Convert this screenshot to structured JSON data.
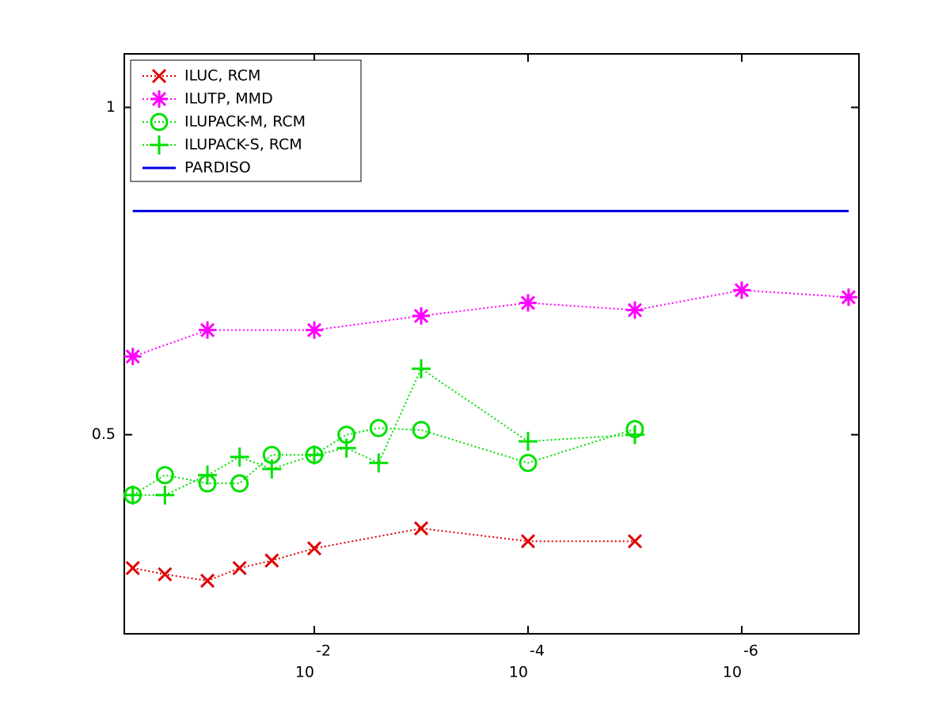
{
  "chart_data": {
    "type": "line",
    "xscale": "log",
    "yscale": "log",
    "xdir": "reverse",
    "xlim": [
      0.6,
      8e-08
    ],
    "ylim": [
      0.328,
      1.12
    ],
    "xticks": [
      {
        "value": 0.01,
        "label": "10",
        "exponent": "-2"
      },
      {
        "value": 0.0001,
        "label": "10",
        "exponent": "-4"
      },
      {
        "value": 1e-06,
        "label": "10",
        "exponent": "-6"
      }
    ],
    "yticks": [
      0.5,
      1
    ],
    "legend": "upper left",
    "series": [
      {
        "name": "ILUC, RCM",
        "color": "#e00000",
        "marker": "x",
        "linestyle": "dotted",
        "x": [
          0.5,
          0.25,
          0.1,
          0.05,
          0.025,
          0.01,
          0.001,
          0.0001,
          1e-05
        ],
        "values": [
          0.377,
          0.372,
          0.367,
          0.377,
          0.383,
          0.393,
          0.41,
          0.399,
          0.399
        ]
      },
      {
        "name": "ILUTP, MMD",
        "color": "#ff00ff",
        "marker": "*",
        "linestyle": "dotted",
        "x": [
          0.5,
          0.1,
          0.01,
          0.001,
          0.0001,
          1e-05,
          1e-06,
          1e-07
        ],
        "values": [
          0.59,
          0.624,
          0.624,
          0.643,
          0.661,
          0.651,
          0.679,
          0.669
        ]
      },
      {
        "name": "ILUPACK-M, RCM",
        "color": "#00e000",
        "marker": "o",
        "linestyle": "dotted",
        "x": [
          0.5,
          0.25,
          0.1,
          0.05,
          0.025,
          0.01,
          0.005,
          0.0025,
          0.001,
          0.0001,
          1e-05
        ],
        "values": [
          0.44,
          0.459,
          0.451,
          0.451,
          0.479,
          0.479,
          0.5,
          0.507,
          0.505,
          0.471,
          0.506
        ]
      },
      {
        "name": "ILUPACK-S, RCM",
        "color": "#00e000",
        "marker": "+",
        "linestyle": "dotted",
        "x": [
          0.5,
          0.25,
          0.1,
          0.05,
          0.025,
          0.01,
          0.005,
          0.0025,
          0.001,
          0.0001,
          1e-05
        ],
        "values": [
          0.44,
          0.44,
          0.459,
          0.477,
          0.465,
          0.479,
          0.486,
          0.471,
          0.575,
          0.493,
          0.5
        ]
      },
      {
        "name": "PARDISO",
        "color": "#0000e0",
        "marker": null,
        "linestyle": "solid",
        "x": [
          0.5,
          1e-07
        ],
        "values": [
          0.803,
          0.803
        ]
      }
    ]
  }
}
